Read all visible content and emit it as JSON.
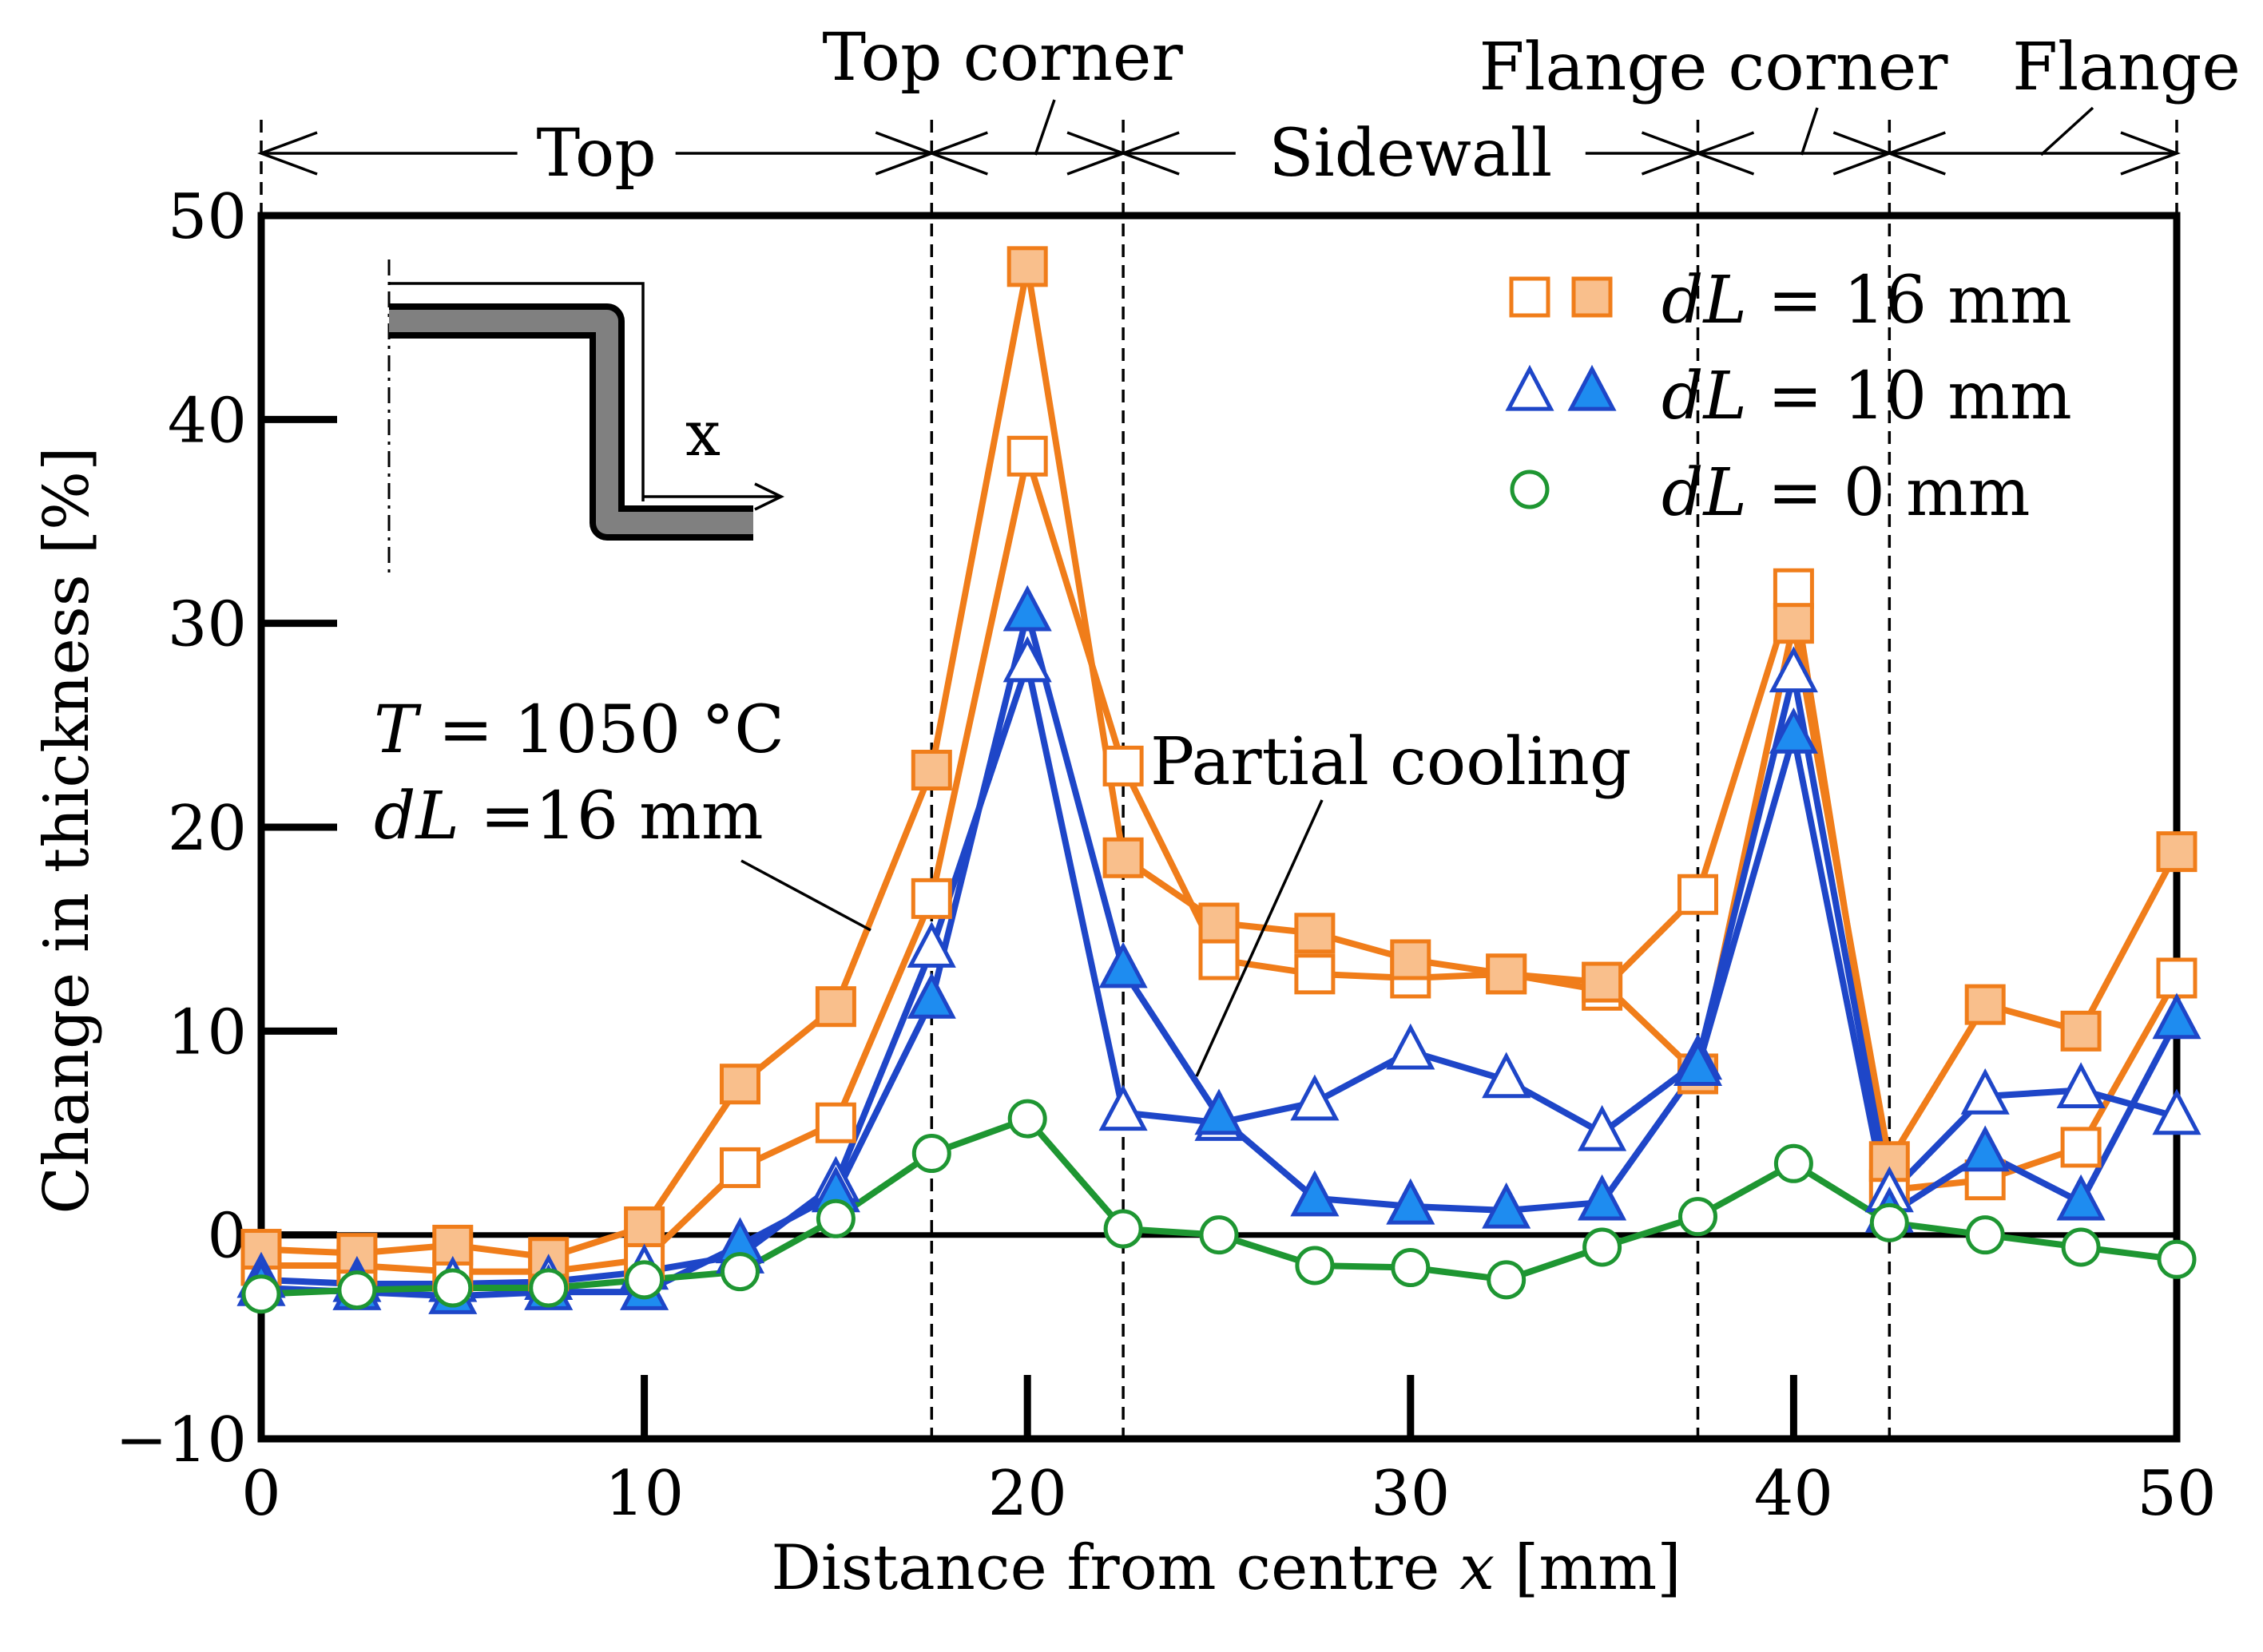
{
  "chart_data": {
    "type": "line",
    "xlabel_prefix": "Distance from centre ",
    "xlabel_var": "x",
    "xlabel_unit": " [mm]",
    "ylabel": "Change in thickness [%]",
    "xlim": [
      0,
      50
    ],
    "ylim": [
      -10,
      50
    ],
    "xticks": [
      0,
      10,
      20,
      30,
      40,
      50
    ],
    "yticks": [
      -10,
      0,
      10,
      20,
      30,
      40,
      50
    ],
    "xtick_labels": [
      "0",
      "10",
      "20",
      "30",
      "40",
      "50"
    ],
    "ytick_labels": [
      "−10",
      "0",
      "10",
      "20",
      "30",
      "40",
      "50"
    ],
    "region_boundaries": [
      17.5,
      22.5,
      37.5,
      42.5
    ],
    "regions": [
      {
        "label": "Top",
        "from": 0,
        "to": 17.5
      },
      {
        "label": "Top corner",
        "from": 17.5,
        "to": 22.5
      },
      {
        "label": "Sidewall",
        "from": 22.5,
        "to": 37.5
      },
      {
        "label": "Flange corner",
        "from": 37.5,
        "to": 42.5
      },
      {
        "label": "Flange",
        "from": 42.5,
        "to": 50
      }
    ],
    "x": [
      0,
      2.5,
      5,
      7.5,
      10,
      12.5,
      15,
      17.5,
      20,
      22.5,
      25,
      27.5,
      30,
      32.5,
      35,
      37.5,
      40,
      42.5,
      45,
      47.5,
      50
    ],
    "series": [
      {
        "name": "dL = 16 mm (open)",
        "color": "#f07d1a",
        "fill": "#ffffff",
        "marker": "square",
        "values": [
          -1.5,
          -1.5,
          -1.8,
          -1.8,
          -1.2,
          3.3,
          5.5,
          16.5,
          38.2,
          23.0,
          13.5,
          12.8,
          12.6,
          12.8,
          12.0,
          16.7,
          31.7,
          2.2,
          2.7,
          4.3,
          12.6
        ]
      },
      {
        "name": "dL = 16 mm (filled)",
        "color": "#f07d1a",
        "fill": "#f9bf8c",
        "marker": "square",
        "values": [
          -0.7,
          -0.9,
          -0.5,
          -1.1,
          0.4,
          7.4,
          11.2,
          22.8,
          47.5,
          18.5,
          15.3,
          14.8,
          13.5,
          12.8,
          12.4,
          7.9,
          30.0,
          3.6,
          11.3,
          10.0,
          18.8
        ]
      },
      {
        "name": "dL = 10 mm (open)",
        "color": "#1e46c8",
        "fill": "#ffffff",
        "marker": "triangle",
        "values": [
          -2.2,
          -2.4,
          -2.4,
          -2.3,
          -1.8,
          -1.0,
          2.5,
          14.0,
          28.0,
          6.0,
          5.5,
          6.5,
          9.0,
          7.6,
          5.0,
          8.5,
          27.5,
          2.0,
          6.8,
          7.1,
          5.8
        ]
      },
      {
        "name": "dL = 10 mm (filled)",
        "color": "#1e46c8",
        "fill": "#1e8cf0",
        "marker": "triangle",
        "values": [
          -2.6,
          -2.8,
          -3.0,
          -2.8,
          -2.8,
          -0.5,
          2.0,
          11.5,
          30.5,
          13.0,
          5.8,
          1.8,
          1.4,
          1.2,
          1.6,
          8.2,
          24.5,
          1.0,
          4.0,
          1.6,
          10.5
        ]
      },
      {
        "name": "dL = 0 mm",
        "color": "#1e9632",
        "fill": "#ffffff",
        "marker": "circle",
        "values": [
          -2.9,
          -2.7,
          -2.6,
          -2.6,
          -2.2,
          -1.8,
          0.8,
          4.0,
          5.7,
          0.3,
          0.0,
          -1.5,
          -1.6,
          -2.2,
          -0.6,
          0.9,
          3.5,
          0.6,
          0.0,
          -0.6,
          -1.2
        ]
      }
    ],
    "legend": [
      {
        "var": "dL",
        "text": " = 16 mm"
      },
      {
        "var": "dL",
        "text": " = 10 mm"
      },
      {
        "var": "dL",
        "text": " =   0 mm"
      }
    ],
    "annotations": {
      "temp_var": "T",
      "temp_text": " = 1050 °C",
      "dl_var": "dL",
      "dl_text": " =16 mm",
      "partial": "Partial cooling",
      "inset_axis": "x"
    }
  }
}
